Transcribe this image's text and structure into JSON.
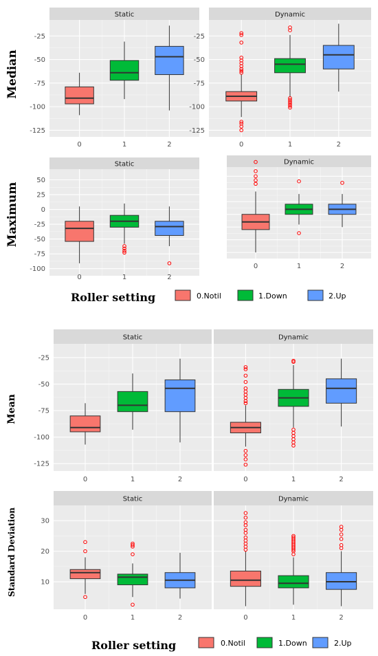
{
  "chart_data": [
    {
      "type": "boxplot",
      "ylabel": "Median",
      "yticks": [
        -25,
        -50,
        -75,
        -100,
        -125
      ],
      "ylim": [
        -132,
        -8
      ],
      "xticks": [
        0,
        1,
        2
      ],
      "panels": [
        {
          "strip": "Static",
          "boxes": [
            {
              "group": 0,
              "min": -109,
              "q1": -97,
              "median": -91,
              "q3": -79,
              "max": -64,
              "outliers": []
            },
            {
              "group": 1,
              "min": -92,
              "q1": -72,
              "median": -64,
              "q3": -51,
              "max": -31,
              "outliers": []
            },
            {
              "group": 2,
              "min": -104,
              "q1": -66,
              "median": -47,
              "q3": -36,
              "max": -14,
              "outliers": []
            }
          ]
        },
        {
          "strip": "Dynamic",
          "boxes": [
            {
              "group": 0,
              "min": -111,
              "q1": -94,
              "median": -89,
              "q3": -84,
              "max": -66,
              "outliers": [
                -116,
                -118,
                -121,
                -125,
                -22,
                -24,
                -32,
                -48,
                -51,
                -54,
                -57,
                -60,
                -62,
                -64
              ]
            },
            {
              "group": 1,
              "min": -90,
              "q1": -64,
              "median": -55,
              "q3": -49,
              "max": -24,
              "outliers": [
                -91,
                -93,
                -95,
                -97,
                -99,
                -101,
                -16,
                -19
              ]
            },
            {
              "group": 2,
              "min": -84,
              "q1": -60,
              "median": -45,
              "q3": -35,
              "max": -12,
              "outliers": []
            }
          ]
        }
      ]
    },
    {
      "type": "boxplot",
      "ylabel": "Maximum",
      "yticks": [
        50,
        25,
        0,
        -25,
        -50,
        -75,
        -100
      ],
      "ylim": [
        -112,
        68
      ],
      "xticks": [
        0,
        1,
        2
      ],
      "panels": [
        {
          "strip": "Static",
          "boxes": [
            {
              "group": 0,
              "min": -91,
              "q1": -54,
              "median": -32,
              "q3": -20,
              "max": 5,
              "outliers": []
            },
            {
              "group": 1,
              "min": -58,
              "q1": -30,
              "median": -20,
              "q3": -10,
              "max": 10,
              "outliers": [
                -62,
                -66,
                -70,
                -73
              ]
            },
            {
              "group": 2,
              "min": -62,
              "q1": -44,
              "median": -29,
              "q3": -20,
              "max": 5,
              "outliers": [
                -91
              ]
            }
          ]
        },
        {
          "strip": "Dynamic",
          "boxes": [
            {
              "group": 0,
              "min": -100,
              "q1": -55,
              "median": -40,
              "q3": -25,
              "max": 20,
              "outliers": [
                35,
                42,
                50,
                60,
                78
              ]
            },
            {
              "group": 1,
              "min": -45,
              "q1": -25,
              "median": -15,
              "q3": -5,
              "max": 15,
              "outliers": [
                40,
                -62
              ]
            },
            {
              "group": 2,
              "min": -50,
              "q1": -25,
              "median": -15,
              "q3": -5,
              "max": 15,
              "outliers": [
                37
              ]
            }
          ]
        }
      ]
    },
    {
      "type": "boxplot",
      "ylabel": "Mean",
      "yticks": [
        -25,
        -50,
        -75,
        -100,
        -125
      ],
      "ylim": [
        -132,
        -12
      ],
      "xticks": [
        0,
        1,
        2
      ],
      "panels": [
        {
          "strip": "Static",
          "boxes": [
            {
              "group": 0,
              "min": -107,
              "q1": -95,
              "median": -91,
              "q3": -80,
              "max": -68,
              "outliers": []
            },
            {
              "group": 1,
              "min": -93,
              "q1": -76,
              "median": -70,
              "q3": -57,
              "max": -40,
              "outliers": []
            },
            {
              "group": 2,
              "min": -105,
              "q1": -76,
              "median": -54,
              "q3": -46,
              "max": -26,
              "outliers": []
            }
          ]
        },
        {
          "strip": "Dynamic",
          "boxes": [
            {
              "group": 0,
              "min": -109,
              "q1": -96,
              "median": -91,
              "q3": -86,
              "max": -70,
              "outliers": [
                -113,
                -117,
                -121,
                -126,
                -34,
                -36,
                -42,
                -48,
                -54,
                -57,
                -60,
                -63,
                -66,
                -68
              ]
            },
            {
              "group": 1,
              "min": -91,
              "q1": -71,
              "median": -63,
              "q3": -55,
              "max": -32,
              "outliers": [
                -93,
                -96,
                -99,
                -102,
                -105,
                -108,
                -28,
                -29
              ]
            },
            {
              "group": 2,
              "min": -90,
              "q1": -68,
              "median": -54,
              "q3": -45,
              "max": -26,
              "outliers": []
            }
          ]
        }
      ]
    },
    {
      "type": "boxplot",
      "ylabel": "Standard Deviation",
      "yticks": [
        30,
        20,
        10
      ],
      "ylim": [
        1,
        35
      ],
      "xticks": [
        0,
        1,
        2
      ],
      "panels": [
        {
          "strip": "Static",
          "boxes": [
            {
              "group": 0,
              "min": 6,
              "q1": 11,
              "median": 13,
              "q3": 14,
              "max": 18,
              "outliers": [
                20,
                23,
                5
              ]
            },
            {
              "group": 1,
              "min": 5,
              "q1": 9,
              "median": 11.5,
              "q3": 12.5,
              "max": 16,
              "outliers": [
                19,
                21.5,
                22,
                22.5,
                2.5
              ]
            },
            {
              "group": 2,
              "min": 4.5,
              "q1": 8,
              "median": 10.5,
              "q3": 13,
              "max": 19.5,
              "outliers": []
            }
          ]
        },
        {
          "strip": "Dynamic",
          "boxes": [
            {
              "group": 0,
              "min": 2,
              "q1": 8.5,
              "median": 10.5,
              "q3": 13.5,
              "max": 20,
              "outliers": [
                20.5,
                21.5,
                22.5,
                23.5,
                24.5,
                26,
                27,
                28.5,
                29.5,
                31,
                32.5
              ]
            },
            {
              "group": 1,
              "min": 2.5,
              "q1": 8,
              "median": 9.5,
              "q3": 12,
              "max": 18,
              "outliers": [
                19,
                20,
                20.5,
                21,
                21.5,
                22,
                22.5,
                23,
                23.5,
                24,
                24.5,
                25
              ]
            },
            {
              "group": 2,
              "min": 2,
              "q1": 7.5,
              "median": 10,
              "q3": 13,
              "max": 20,
              "outliers": [
                21,
                22,
                24,
                25.5,
                27,
                28
              ]
            }
          ]
        }
      ]
    }
  ],
  "legend_top": {
    "title": "Roller setting",
    "items": [
      "0.Notil",
      "1.Down",
      "2.Up"
    ]
  },
  "legend_bottom": {
    "title": "Roller setting",
    "items": [
      "0.Notil",
      "1.Down",
      "2.Up"
    ]
  },
  "colors": {
    "notil": "#f8766d",
    "down": "#00ba38",
    "up": "#619cff",
    "panel_bg": "#ebebeb",
    "strip_bg": "#d9d9d9",
    "outlier": "#ff0000"
  }
}
